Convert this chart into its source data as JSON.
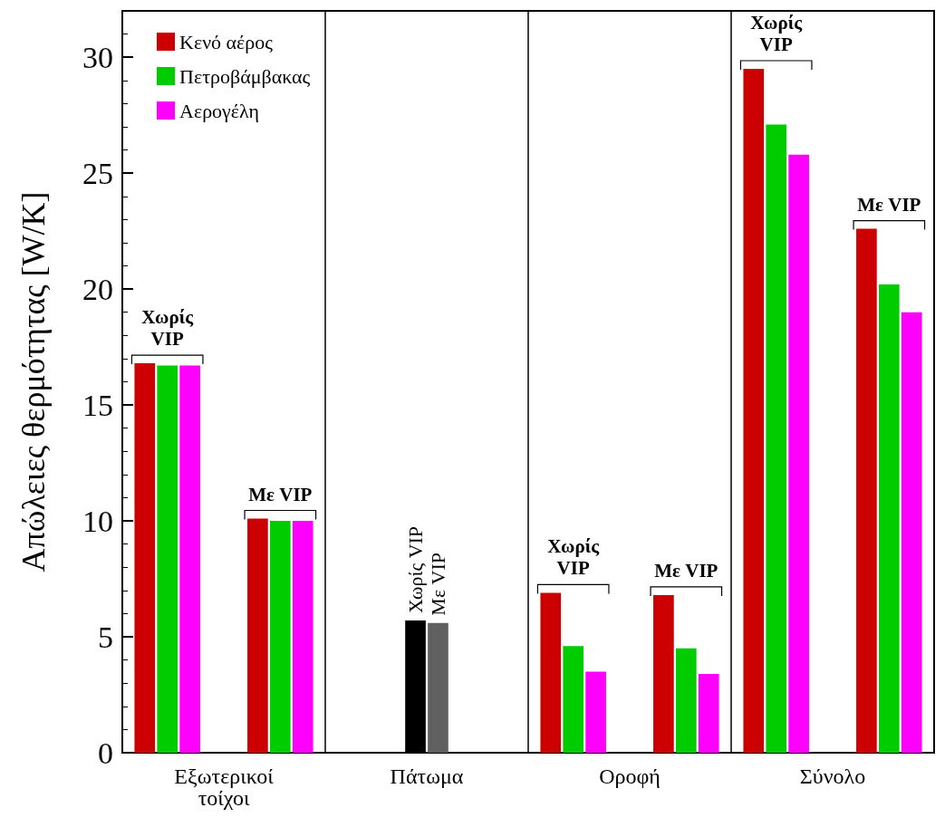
{
  "chart_data": {
    "type": "bar",
    "ylabel": "Απώλειες θερμότητας [W/K]",
    "categories": [
      "Εξωτερικοί τοίχοι",
      "Πάτωμα",
      "Οροφή",
      "Σύνολο"
    ],
    "series": [
      {
        "name": "Κενό αέρος",
        "color": "#cc0000",
        "values": [
          16.8,
          null,
          6.9,
          29.5
        ]
      },
      {
        "name": "Πετροβάμβακας",
        "color": "#00cc00",
        "values": [
          16.7,
          null,
          4.6,
          27.1
        ]
      },
      {
        "name": "Αερογέλη",
        "color": "#ff00ff",
        "values": [
          16.7,
          null,
          3.5,
          25.8
        ]
      },
      {
        "name": "Χωρίς VIP",
        "color": "#000000",
        "values": [
          null,
          5.7,
          null,
          null
        ]
      },
      {
        "name": "Με VIP",
        "color": "#606060",
        "values": [
          null,
          5.6,
          null,
          null
        ]
      },
      {
        "color": "#cc0000",
        "values": [
          10.1,
          null,
          6.8,
          22.6
        ]
      },
      {
        "color": "#00cc00",
        "values": [
          10.0,
          null,
          4.5,
          20.2
        ]
      },
      {
        "color": "#ff00ff",
        "values": [
          10.0,
          null,
          3.4,
          19.0
        ]
      }
    ],
    "annotations": [
      "Χωρίς VIP",
      "Με VIP",
      "Χωρίς VIP",
      "Με VIP",
      "Χωρίς VIP",
      "Με VIP"
    ],
    "ylim": [
      0,
      32
    ],
    "yticks": [
      0,
      5,
      10,
      15,
      20,
      25,
      30
    ],
    "grid": "x",
    "legend": "top left"
  }
}
